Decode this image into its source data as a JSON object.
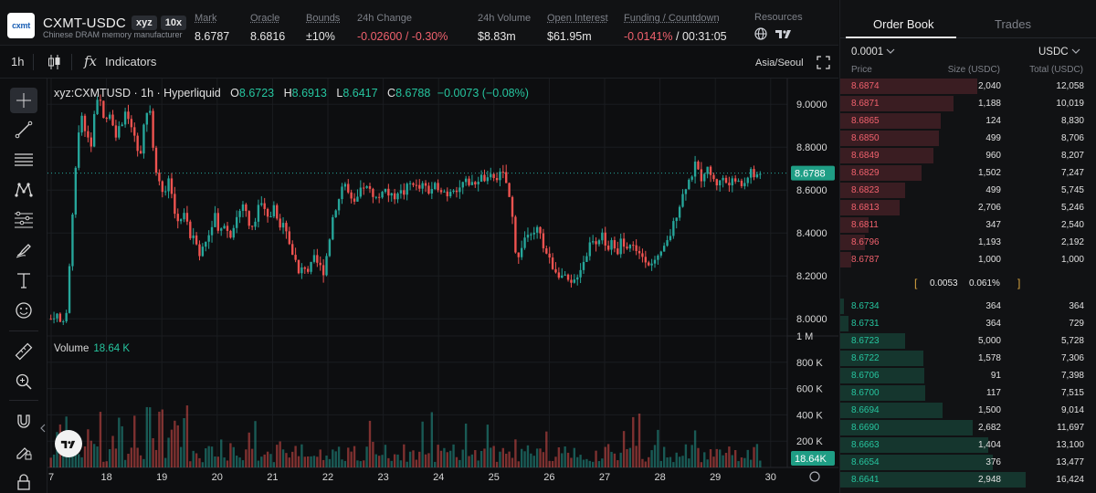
{
  "header": {
    "logo_text": "cxmt",
    "symbol": "CXMT-USDC",
    "badge_dex": "xyz",
    "badge_leverage": "10x",
    "subtitle": "Chinese DRAM memory manufacturer",
    "stats": [
      {
        "label": "Mark",
        "value": "8.6787"
      },
      {
        "label": "Oracle",
        "value": "8.6816"
      },
      {
        "label": "Bounds",
        "value": "±10%"
      },
      {
        "label": "24h Change",
        "value": "-0.02600 / -0.30%"
      },
      {
        "label": "24h Volume",
        "value": "$8.83m"
      },
      {
        "label": "Open Interest",
        "value": "$61.95m"
      },
      {
        "label": "Funding / Countdown",
        "value_a": "-0.0141%",
        "value_b": "/ 00:31:05"
      },
      {
        "label": "Resources"
      }
    ]
  },
  "toolbar": {
    "interval": "1h",
    "indicators": "Indicators",
    "timezone": "Asia/Seoul"
  },
  "legend": {
    "title": "xyz:CXMTUSD · 1h · Hyperliquid",
    "o_k": "O",
    "o_v": "8.6723",
    "h_k": "H",
    "h_v": "8.6913",
    "l_k": "L",
    "l_v": "8.6417",
    "c_k": "C",
    "c_v": "8.6788",
    "chg": "−0.0073 (−0.08%)"
  },
  "volume": {
    "label": "Volume",
    "value": "18.64 K"
  },
  "chart_data": {
    "type": "candlestick",
    "x_ticks": [
      "7",
      "18",
      "19",
      "20",
      "21",
      "22",
      "23",
      "24",
      "25",
      "26",
      "27",
      "28",
      "29",
      "30"
    ],
    "price_ticks": [
      "9.0000",
      "8.8000",
      "8.6000",
      "8.4000",
      "8.2000",
      "8.0000"
    ],
    "ylim": [
      7.92,
      9.12
    ],
    "volume_ticks": [
      "1 M",
      "800 K",
      "600 K",
      "400 K",
      "200 K"
    ],
    "volume_ylim": [
      0,
      1000000
    ],
    "last_price": "8.6788",
    "last_volume": "18.64K",
    "price_path": [
      [
        0,
        8.0
      ],
      [
        1,
        8.03
      ],
      [
        2,
        7.98
      ],
      [
        3,
        7.96
      ],
      [
        4,
        8.35
      ],
      [
        5,
        8.72
      ],
      [
        6,
        8.95
      ],
      [
        7,
        8.88
      ],
      [
        8,
        8.78
      ],
      [
        9,
        9.01
      ],
      [
        10,
        9.03
      ],
      [
        11,
        8.9
      ],
      [
        12,
        8.98
      ],
      [
        13,
        8.86
      ],
      [
        14,
        8.9
      ],
      [
        15,
        8.95
      ],
      [
        16,
        8.92
      ],
      [
        17,
        8.82
      ],
      [
        18,
        8.73
      ],
      [
        19,
        8.96
      ],
      [
        20,
        8.98
      ],
      [
        21,
        8.7
      ],
      [
        22,
        8.62
      ],
      [
        23,
        8.6
      ],
      [
        24,
        8.65
      ],
      [
        25,
        8.5
      ],
      [
        26,
        8.45
      ],
      [
        27,
        8.5
      ],
      [
        28,
        8.38
      ],
      [
        29,
        8.4
      ],
      [
        30,
        8.3
      ],
      [
        31,
        8.35
      ],
      [
        32,
        8.4
      ],
      [
        33,
        8.5
      ],
      [
        34,
        8.4
      ],
      [
        35,
        8.45
      ],
      [
        36,
        8.38
      ],
      [
        37,
        8.45
      ],
      [
        38,
        8.5
      ],
      [
        39,
        8.55
      ],
      [
        40,
        8.42
      ],
      [
        41,
        8.45
      ],
      [
        42,
        8.55
      ],
      [
        43,
        8.5
      ],
      [
        44,
        8.45
      ],
      [
        45,
        8.55
      ],
      [
        46,
        8.4
      ],
      [
        47,
        8.48
      ],
      [
        48,
        8.35
      ],
      [
        49,
        8.3
      ],
      [
        50,
        8.2
      ],
      [
        51,
        8.25
      ],
      [
        52,
        8.22
      ],
      [
        53,
        8.28
      ],
      [
        54,
        8.25
      ],
      [
        55,
        8.22
      ],
      [
        56,
        8.35
      ],
      [
        57,
        8.5
      ],
      [
        58,
        8.55
      ],
      [
        59,
        8.65
      ],
      [
        60,
        8.58
      ],
      [
        61,
        8.52
      ],
      [
        62,
        8.57
      ],
      [
        63,
        8.62
      ],
      [
        64,
        8.6
      ],
      [
        65,
        8.58
      ],
      [
        66,
        8.55
      ],
      [
        67,
        8.62
      ],
      [
        68,
        8.58
      ],
      [
        69,
        8.56
      ],
      [
        70,
        8.6
      ],
      [
        71,
        8.58
      ],
      [
        72,
        8.62
      ],
      [
        73,
        8.64
      ],
      [
        74,
        8.6
      ],
      [
        75,
        8.62
      ],
      [
        76,
        8.59
      ],
      [
        77,
        8.61
      ],
      [
        78,
        8.62
      ],
      [
        79,
        8.6
      ],
      [
        80,
        8.58
      ],
      [
        81,
        8.62
      ],
      [
        82,
        8.6
      ],
      [
        83,
        8.63
      ],
      [
        84,
        8.64
      ],
      [
        85,
        8.62
      ],
      [
        86,
        8.65
      ],
      [
        87,
        8.66
      ],
      [
        88,
        8.64
      ],
      [
        89,
        8.67
      ],
      [
        90,
        8.66
      ],
      [
        91,
        8.68
      ],
      [
        92,
        8.62
      ],
      [
        93,
        8.48
      ],
      [
        94,
        8.25
      ],
      [
        95,
        8.35
      ],
      [
        96,
        8.4
      ],
      [
        97,
        8.37
      ],
      [
        98,
        8.42
      ],
      [
        99,
        8.36
      ],
      [
        100,
        8.3
      ],
      [
        101,
        8.25
      ],
      [
        102,
        8.22
      ],
      [
        103,
        8.2
      ],
      [
        104,
        8.18
      ],
      [
        105,
        8.15
      ],
      [
        106,
        8.2
      ],
      [
        107,
        8.25
      ],
      [
        108,
        8.3
      ],
      [
        109,
        8.38
      ],
      [
        110,
        8.36
      ],
      [
        111,
        8.4
      ],
      [
        112,
        8.32
      ],
      [
        113,
        8.35
      ],
      [
        114,
        8.3
      ],
      [
        115,
        8.37
      ],
      [
        116,
        8.33
      ],
      [
        117,
        8.35
      ],
      [
        118,
        8.32
      ],
      [
        119,
        8.3
      ],
      [
        120,
        8.28
      ],
      [
        121,
        8.25
      ],
      [
        122,
        8.26
      ],
      [
        123,
        8.3
      ],
      [
        124,
        8.34
      ],
      [
        125,
        8.4
      ],
      [
        126,
        8.48
      ],
      [
        127,
        8.55
      ],
      [
        128,
        8.62
      ],
      [
        129,
        8.66
      ],
      [
        130,
        8.72
      ],
      [
        131,
        8.65
      ],
      [
        132,
        8.7
      ],
      [
        133,
        8.68
      ],
      [
        134,
        8.62
      ],
      [
        135,
        8.66
      ],
      [
        136,
        8.64
      ],
      [
        137,
        8.62
      ],
      [
        138,
        8.66
      ],
      [
        139,
        8.61
      ],
      [
        140,
        8.64
      ],
      [
        141,
        8.7
      ],
      [
        142,
        8.65
      ],
      [
        143,
        8.68
      ]
    ]
  },
  "orderbook": {
    "tab_book": "Order Book",
    "tab_trades": "Trades",
    "tick": "0.0001",
    "unit": "USDC",
    "col_price": "Price",
    "col_size": "Size (USDC)",
    "col_total": "Total (USDC)",
    "asks": [
      {
        "price": "8.6874",
        "size": "2,040",
        "total": "12,058",
        "depth": 0.74
      },
      {
        "price": "8.6871",
        "size": "1,188",
        "total": "10,019",
        "depth": 0.61
      },
      {
        "price": "8.6865",
        "size": "124",
        "total": "8,830",
        "depth": 0.54
      },
      {
        "price": "8.6850",
        "size": "499",
        "total": "8,706",
        "depth": 0.53
      },
      {
        "price": "8.6849",
        "size": "960",
        "total": "8,207",
        "depth": 0.5
      },
      {
        "price": "8.6829",
        "size": "1,502",
        "total": "7,247",
        "depth": 0.44
      },
      {
        "price": "8.6823",
        "size": "499",
        "total": "5,745",
        "depth": 0.35
      },
      {
        "price": "8.6813",
        "size": "2,706",
        "total": "5,246",
        "depth": 0.32
      },
      {
        "price": "8.6811",
        "size": "347",
        "total": "2,540",
        "depth": 0.155
      },
      {
        "price": "8.6796",
        "size": "1,193",
        "total": "2,192",
        "depth": 0.134
      },
      {
        "price": "8.6787",
        "size": "1,000",
        "total": "1,000",
        "depth": 0.061
      }
    ],
    "spread_value": "0.0053",
    "spread_pct": "0.061%",
    "bids": [
      {
        "price": "8.6734",
        "size": "364",
        "total": "364",
        "depth": 0.022
      },
      {
        "price": "8.6731",
        "size": "364",
        "total": "729",
        "depth": 0.044
      },
      {
        "price": "8.6723",
        "size": "5,000",
        "total": "5,728",
        "depth": 0.35
      },
      {
        "price": "8.6722",
        "size": "1,578",
        "total": "7,306",
        "depth": 0.446
      },
      {
        "price": "8.6706",
        "size": "91",
        "total": "7,398",
        "depth": 0.452
      },
      {
        "price": "8.6700",
        "size": "117",
        "total": "7,515",
        "depth": 0.459
      },
      {
        "price": "8.6694",
        "size": "1,500",
        "total": "9,014",
        "depth": 0.551
      },
      {
        "price": "8.6690",
        "size": "2,682",
        "total": "11,697",
        "depth": 0.715
      },
      {
        "price": "8.6663",
        "size": "1,404",
        "total": "13,100",
        "depth": 0.8
      },
      {
        "price": "8.6654",
        "size": "376",
        "total": "13,477",
        "depth": 0.823
      },
      {
        "price": "8.6641",
        "size": "2,948",
        "total": "16,424",
        "depth": 1.0
      }
    ]
  },
  "colors": {
    "up": "#26a69a",
    "down": "#ef5350",
    "ask_bar": "#3a1d22",
    "bid_bar": "#15362e",
    "bg": "#0d0e10"
  }
}
